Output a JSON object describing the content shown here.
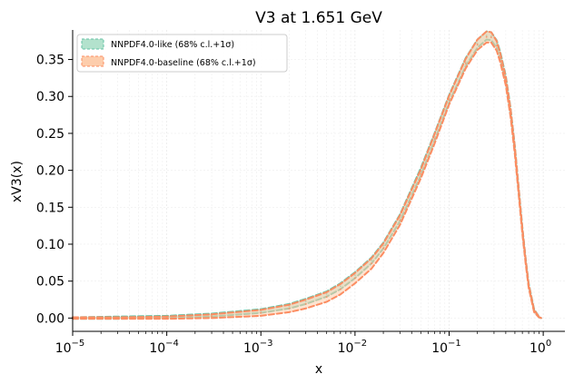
{
  "chart_data": {
    "type": "line",
    "title": "V3 at 1.651 GeV",
    "xlabel": "x",
    "ylabel": "xV3(x)",
    "xscale": "log",
    "xlim": [
      1e-05,
      1.7
    ],
    "ylim": [
      -0.018,
      0.39
    ],
    "grid": true,
    "legend_position": "top-left",
    "x_ticks": [
      {
        "value": 1e-05,
        "base": "10",
        "exp": "−5"
      },
      {
        "value": 0.0001,
        "base": "10",
        "exp": "−4"
      },
      {
        "value": 0.001,
        "base": "10",
        "exp": "−3"
      },
      {
        "value": 0.01,
        "base": "10",
        "exp": "−2"
      },
      {
        "value": 0.1,
        "base": "10",
        "exp": "−1"
      },
      {
        "value": 1,
        "base": "10",
        "exp": "0"
      }
    ],
    "y_ticks": [
      {
        "value": 0.0,
        "label": "0.00"
      },
      {
        "value": 0.05,
        "label": "0.05"
      },
      {
        "value": 0.1,
        "label": "0.10"
      },
      {
        "value": 0.15,
        "label": "0.15"
      },
      {
        "value": 0.2,
        "label": "0.20"
      },
      {
        "value": 0.25,
        "label": "0.25"
      },
      {
        "value": 0.3,
        "label": "0.30"
      },
      {
        "value": 0.35,
        "label": "0.35"
      }
    ],
    "x": [
      1e-05,
      3e-05,
      0.0001,
      0.0003,
      0.001,
      0.002,
      0.003,
      0.005,
      0.007,
      0.01,
      0.015,
      0.02,
      0.03,
      0.05,
      0.07,
      0.1,
      0.15,
      0.2,
      0.25,
      0.28,
      0.32,
      0.35,
      0.4,
      0.45,
      0.5,
      0.55,
      0.6,
      0.65,
      0.7,
      0.8,
      0.9,
      0.95
    ],
    "series": [
      {
        "name": "NNPDF4.0-like (68% c.l.+1σ)",
        "color": "#66c2a5",
        "fill": "#b3e2cd",
        "upper": [
          0.001,
          0.002,
          0.003,
          0.006,
          0.012,
          0.019,
          0.026,
          0.036,
          0.047,
          0.062,
          0.082,
          0.102,
          0.14,
          0.203,
          0.25,
          0.302,
          0.352,
          0.377,
          0.388,
          0.387,
          0.376,
          0.36,
          0.328,
          0.284,
          0.232,
          0.175,
          0.123,
          0.081,
          0.047,
          0.012,
          0.002,
          0.0
        ],
        "lower": [
          -0.001,
          -0.001,
          0.0,
          0.002,
          0.007,
          0.013,
          0.019,
          0.029,
          0.039,
          0.054,
          0.074,
          0.094,
          0.131,
          0.193,
          0.24,
          0.292,
          0.341,
          0.366,
          0.377,
          0.376,
          0.366,
          0.35,
          0.318,
          0.275,
          0.224,
          0.168,
          0.117,
          0.076,
          0.043,
          0.009,
          0.001,
          0.0
        ]
      },
      {
        "name": "NNPDF4.0-baseline (68% c.l.+1σ)",
        "color": "#fc8d62",
        "fill": "#fdcdac",
        "upper": [
          0.001,
          0.001,
          0.002,
          0.005,
          0.011,
          0.018,
          0.025,
          0.035,
          0.046,
          0.061,
          0.081,
          0.101,
          0.139,
          0.201,
          0.249,
          0.301,
          0.351,
          0.377,
          0.388,
          0.387,
          0.375,
          0.358,
          0.326,
          0.283,
          0.231,
          0.174,
          0.122,
          0.08,
          0.046,
          0.011,
          0.002,
          0.0
        ],
        "lower": [
          -0.001,
          -0.001,
          -0.001,
          0.0,
          0.003,
          0.008,
          0.013,
          0.022,
          0.032,
          0.047,
          0.067,
          0.088,
          0.126,
          0.189,
          0.236,
          0.289,
          0.338,
          0.363,
          0.373,
          0.373,
          0.362,
          0.346,
          0.315,
          0.272,
          0.221,
          0.165,
          0.114,
          0.074,
          0.041,
          0.008,
          0.001,
          0.0
        ]
      }
    ]
  }
}
